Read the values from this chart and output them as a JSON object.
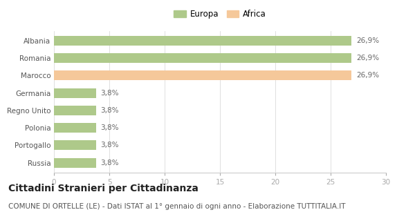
{
  "categories": [
    "Albania",
    "Romania",
    "Marocco",
    "Germania",
    "Regno Unito",
    "Polonia",
    "Portogallo",
    "Russia"
  ],
  "values": [
    26.9,
    26.9,
    26.9,
    3.8,
    3.8,
    3.8,
    3.8,
    3.8
  ],
  "bar_colors": [
    "#aec98a",
    "#aec98a",
    "#f5c89a",
    "#aec98a",
    "#aec98a",
    "#aec98a",
    "#aec98a",
    "#aec98a"
  ],
  "labels": [
    "26,9%",
    "26,9%",
    "26,9%",
    "3,8%",
    "3,8%",
    "3,8%",
    "3,8%",
    "3,8%"
  ],
  "legend": [
    {
      "label": "Europa",
      "color": "#aec98a"
    },
    {
      "label": "Africa",
      "color": "#f5c89a"
    }
  ],
  "xlim": [
    0,
    30
  ],
  "xticks": [
    0,
    5,
    10,
    15,
    20,
    25,
    30
  ],
  "title": "Cittadini Stranieri per Cittadinanza",
  "subtitle": "COMUNE DI ORTELLE (LE) - Dati ISTAT al 1° gennaio di ogni anno - Elaborazione TUTTITALIA.IT",
  "background_color": "#ffffff",
  "bar_height": 0.55,
  "title_fontsize": 10,
  "subtitle_fontsize": 7.5,
  "label_fontsize": 7.5,
  "tick_fontsize": 7.5,
  "legend_fontsize": 8.5
}
